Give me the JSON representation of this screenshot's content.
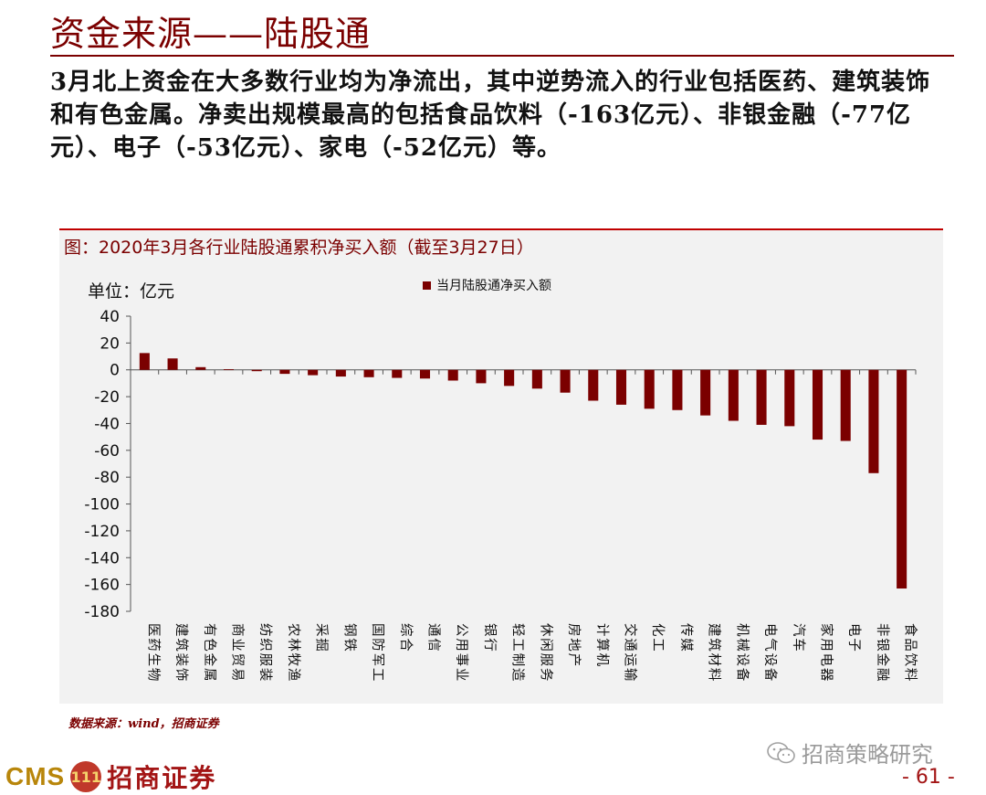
{
  "slide": {
    "title": "资金来源——陆股通",
    "summary": "3月北上资金在大多数行业均为净流出，其中逆势流入的行业包括医药、建筑装饰和有色金属。净卖出规模最高的包括食品饮料（-163亿元）、非银金融（-77亿元）、电子（-53亿元）、家电（-52亿元）等。"
  },
  "chart_data": {
    "type": "bar",
    "title": "图：2020年3月各行业陆股通累积净买入额（截至3月27日）",
    "unit_label": "单位：亿元",
    "categories": [
      "医药生物",
      "建筑装饰",
      "有色金属",
      "商业贸易",
      "纺织服装",
      "农林牧渔",
      "采掘",
      "钢铁",
      "国防军工",
      "综合",
      "通信",
      "公用事业",
      "银行",
      "轻工制造",
      "休闲服务",
      "房地产",
      "计算机",
      "交通运输",
      "化工",
      "传媒",
      "建筑材料",
      "机械设备",
      "电气设备",
      "汽车",
      "家用电器",
      "电子",
      "非银金融",
      "食品饮料"
    ],
    "series": [
      {
        "name": "当月陆股通净买入额",
        "values": [
          12.5,
          8.5,
          2,
          0.5,
          -1,
          -3,
          -4,
          -5,
          -5.5,
          -6,
          -6.5,
          -8,
          -10,
          -12,
          -14,
          -17,
          -23,
          -26,
          -29,
          -30,
          -34,
          -38,
          -41,
          -42,
          -52,
          -53,
          -77,
          -163
        ]
      }
    ],
    "ylim": [
      -180,
      40
    ],
    "yticks": [
      40,
      20,
      0,
      -20,
      -40,
      -60,
      -80,
      -100,
      -120,
      -140,
      -160,
      -180
    ],
    "xlabel": "",
    "ylabel": "",
    "legend": "top-center",
    "grid": false,
    "bar_color": "#7b0000"
  },
  "footer": {
    "source": "数据来源：wind，招商证券",
    "logo_cms": "CMS",
    "logo_mark": "111",
    "logo_name": "招商证券",
    "watermark": "招商策略研究",
    "page_number": "- 61 -"
  }
}
